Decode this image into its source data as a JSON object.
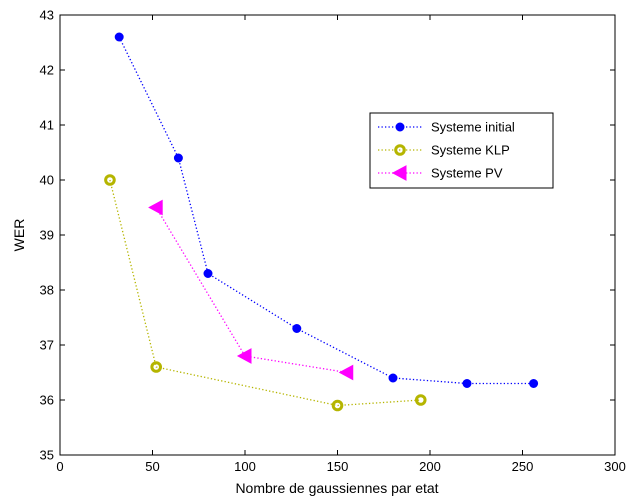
{
  "chart_data": {
    "type": "line",
    "title": "",
    "xlabel": "Nombre de gaussiennes par etat",
    "ylabel": "WER",
    "xlim": [
      0,
      300
    ],
    "ylim": [
      35,
      43
    ],
    "xticks": [
      0,
      50,
      100,
      150,
      200,
      250,
      300
    ],
    "yticks": [
      35,
      36,
      37,
      38,
      39,
      40,
      41,
      42,
      43
    ],
    "grid": false,
    "legend_position": "top-right",
    "series": [
      {
        "name": "Systeme initial",
        "color": "#0000ff",
        "marker": "filled-circle",
        "line_style": "dotted",
        "x": [
          32,
          64,
          80,
          128,
          180,
          220,
          256
        ],
        "y": [
          42.6,
          40.4,
          38.3,
          37.3,
          36.4,
          36.3,
          36.3
        ]
      },
      {
        "name": "Systeme KLP",
        "color": "#b5b500",
        "marker": "ring",
        "line_style": "dotted",
        "x": [
          27,
          52,
          150,
          195
        ],
        "y": [
          40.0,
          36.6,
          35.9,
          36.0
        ]
      },
      {
        "name": "Systeme PV",
        "color": "#ff00ff",
        "marker": "left-triangle",
        "line_style": "dotted",
        "x": [
          52,
          100,
          155
        ],
        "y": [
          39.5,
          36.8,
          36.5
        ]
      }
    ]
  }
}
